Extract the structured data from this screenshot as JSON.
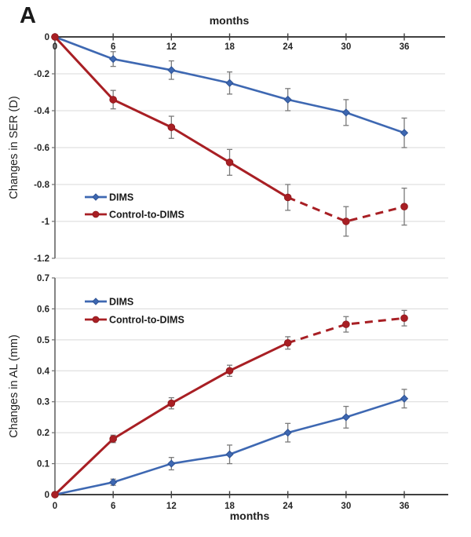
{
  "panel_label": "A",
  "colors": {
    "dims": "#3e68b2",
    "dims_edge": "#2e5293",
    "control": "#a81f24",
    "control_edge": "#8d181c",
    "grid": "#d9d9d9",
    "x_axis": "#404040",
    "y_axis": "#6f6f6f",
    "error_bar": "#7a7a7a",
    "text": "#262626"
  },
  "chart_data": [
    {
      "id": "ser",
      "type": "line",
      "title": "months",
      "ylabel": "Changes in SER (D)",
      "x_values": [
        0,
        6,
        12,
        18,
        24,
        30,
        36
      ],
      "x_tick_labels": [
        "0",
        "6",
        "12",
        "18",
        "24",
        "30",
        "36"
      ],
      "y_tick_values": [
        0,
        -0.2,
        -0.4,
        -0.6,
        -0.8,
        -1,
        -1.2
      ],
      "y_tick_labels": [
        "0",
        "-0.2",
        "-0.4",
        "-0.6",
        "-0.8",
        "-1",
        "-1.2"
      ],
      "ylim": [
        -1.2,
        0
      ],
      "legend_position": "left-middle",
      "series": [
        {
          "name": "DIMS",
          "color_key": "dims",
          "marker": "diamond",
          "dash_from_x": null,
          "y": [
            0,
            -0.12,
            -0.18,
            -0.25,
            -0.34,
            -0.41,
            -0.52
          ],
          "err": [
            0,
            0.04,
            0.05,
            0.06,
            0.06,
            0.07,
            0.08
          ]
        },
        {
          "name": "Control-to-DIMS",
          "color_key": "control",
          "marker": "circle",
          "dash_from_x": 24,
          "y": [
            0,
            -0.34,
            -0.49,
            -0.68,
            -0.87,
            -1.0,
            -0.92
          ],
          "err": [
            0,
            0.05,
            0.06,
            0.07,
            0.07,
            0.08,
            0.1
          ]
        }
      ]
    },
    {
      "id": "al",
      "type": "line",
      "title": "months",
      "ylabel": "Changes in AL (mm)",
      "x_values": [
        0,
        6,
        12,
        18,
        24,
        30,
        36
      ],
      "x_tick_labels": [
        "0",
        "6",
        "12",
        "18",
        "24",
        "30",
        "36"
      ],
      "y_tick_values": [
        0,
        0.1,
        0.2,
        0.3,
        0.4,
        0.5,
        0.6,
        0.7
      ],
      "y_tick_labels": [
        "0",
        "0.1",
        "0.2",
        "0.3",
        "0.4",
        "0.5",
        "0.6",
        "0.7"
      ],
      "ylim": [
        0,
        0.7
      ],
      "legend_position": "left-top",
      "series": [
        {
          "name": "DIMS",
          "color_key": "dims",
          "marker": "diamond",
          "dash_from_x": null,
          "y": [
            0,
            0.04,
            0.1,
            0.13,
            0.2,
            0.25,
            0.31
          ],
          "err": [
            0,
            0.01,
            0.02,
            0.03,
            0.03,
            0.035,
            0.03
          ]
        },
        {
          "name": "Control-to-DIMS",
          "color_key": "control",
          "marker": "circle",
          "dash_from_x": 24,
          "y": [
            0,
            0.18,
            0.295,
            0.4,
            0.49,
            0.55,
            0.57
          ],
          "err": [
            0,
            0.012,
            0.018,
            0.018,
            0.02,
            0.025,
            0.025
          ]
        }
      ]
    }
  ]
}
